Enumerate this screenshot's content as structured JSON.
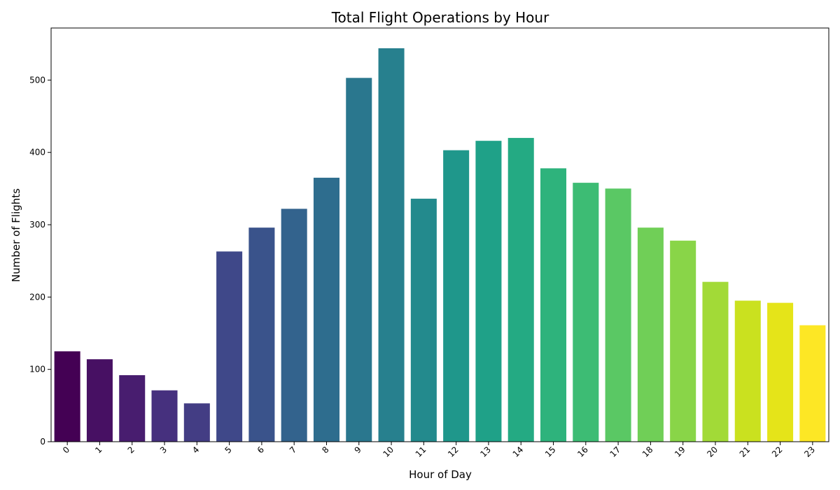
{
  "chart_data": {
    "type": "bar",
    "title": "Total Flight Operations by Hour",
    "xlabel": "Hour of Day",
    "ylabel": "Number of Flights",
    "categories": [
      "0",
      "1",
      "2",
      "3",
      "4",
      "5",
      "6",
      "7",
      "8",
      "9",
      "10",
      "11",
      "12",
      "13",
      "14",
      "15",
      "16",
      "17",
      "18",
      "19",
      "20",
      "21",
      "22",
      "23"
    ],
    "values": [
      125,
      114,
      92,
      71,
      53,
      263,
      296,
      322,
      365,
      503,
      544,
      336,
      403,
      416,
      420,
      378,
      358,
      350,
      296,
      278,
      221,
      195,
      192,
      161
    ],
    "ylim": [
      0,
      572
    ],
    "yticks": [
      0,
      100,
      200,
      300,
      400,
      500
    ],
    "grid": false,
    "colors": [
      "#440154",
      "#481668",
      "#482878",
      "#453781",
      "#3f4788",
      "#39558c",
      "#32648e",
      "#2d718e",
      "#287d8e",
      "#238a8d",
      "#1f968b",
      "#20a386",
      "#29af7f",
      "#3cbc75",
      "#56c667",
      "#75d054",
      "#95d840",
      "#bade28",
      "#dde318",
      "#fde725",
      "#fde725",
      "#fde725",
      "#fde725",
      "#fde725"
    ]
  }
}
